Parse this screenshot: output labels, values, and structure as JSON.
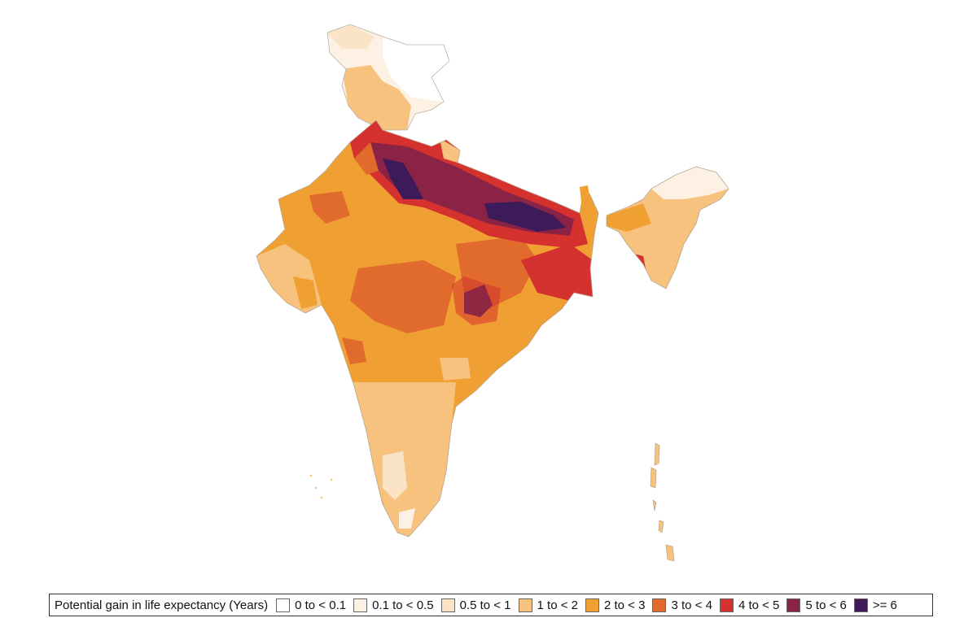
{
  "map": {
    "region": "India",
    "classes": [
      {
        "key": "c0",
        "label": "0 to < 0.1",
        "color": "#ffffff"
      },
      {
        "key": "c1",
        "label": "0.1 to < 0.5",
        "color": "#fdf1e4"
      },
      {
        "key": "c2",
        "label": "0.5 to < 1",
        "color": "#fbe3c6"
      },
      {
        "key": "c3",
        "label": "1 to < 2",
        "color": "#f7c27d"
      },
      {
        "key": "c4",
        "label": "2 to < 3",
        "color": "#f0a032"
      },
      {
        "key": "c5",
        "label": "3 to < 4",
        "color": "#e06b2c"
      },
      {
        "key": "c6",
        "label": "4 to < 5",
        "color": "#d4312f"
      },
      {
        "key": "c7",
        "label": "5 to < 6",
        "color": "#8b2346"
      },
      {
        "key": "c8",
        "label": ">= 6",
        "color": "#3d1a5a"
      }
    ]
  },
  "legend": {
    "title": "Potential gain in life expectancy (Years)"
  }
}
